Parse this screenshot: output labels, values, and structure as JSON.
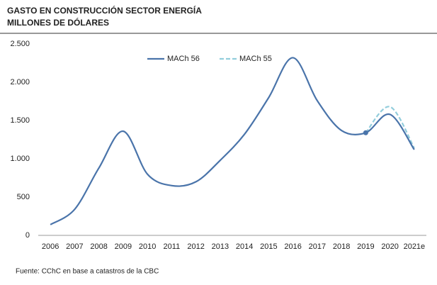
{
  "chart_data": {
    "type": "line",
    "title": "GASTO EN CONSTRUCCIÓN SECTOR ENERGÍA",
    "subtitle": "MILLONES DE DÓLARES",
    "note": "Fuente: CChC en base a catastros de la CBC",
    "categories": [
      "2006",
      "2007",
      "2008",
      "2009",
      "2010",
      "2011",
      "2012",
      "2013",
      "2014",
      "2015",
      "2016",
      "2017",
      "2018",
      "2019",
      "2020",
      "2021e"
    ],
    "series": [
      {
        "name": "MACh 56",
        "color": "#4a74aa",
        "dashed": false,
        "values": [
          140,
          340,
          880,
          1360,
          800,
          650,
          700,
          980,
          1320,
          1800,
          2320,
          1760,
          1370,
          1340,
          1580,
          1120
        ]
      },
      {
        "name": "MACh 55",
        "color": "#92cddc",
        "dashed": true,
        "values": [
          null,
          null,
          null,
          null,
          null,
          null,
          null,
          null,
          null,
          null,
          null,
          null,
          null,
          1340,
          1680,
          1140
        ]
      }
    ],
    "ylim": [
      0,
      2500
    ],
    "yticks": [
      0,
      500,
      {
        "value": 1000,
        "label": "1.000"
      },
      {
        "value": 1500,
        "label": "1.500"
      },
      {
        "value": 2000,
        "label": "2.000"
      },
      {
        "value": 2500,
        "label": "2.500"
      }
    ],
    "grid": false
  }
}
